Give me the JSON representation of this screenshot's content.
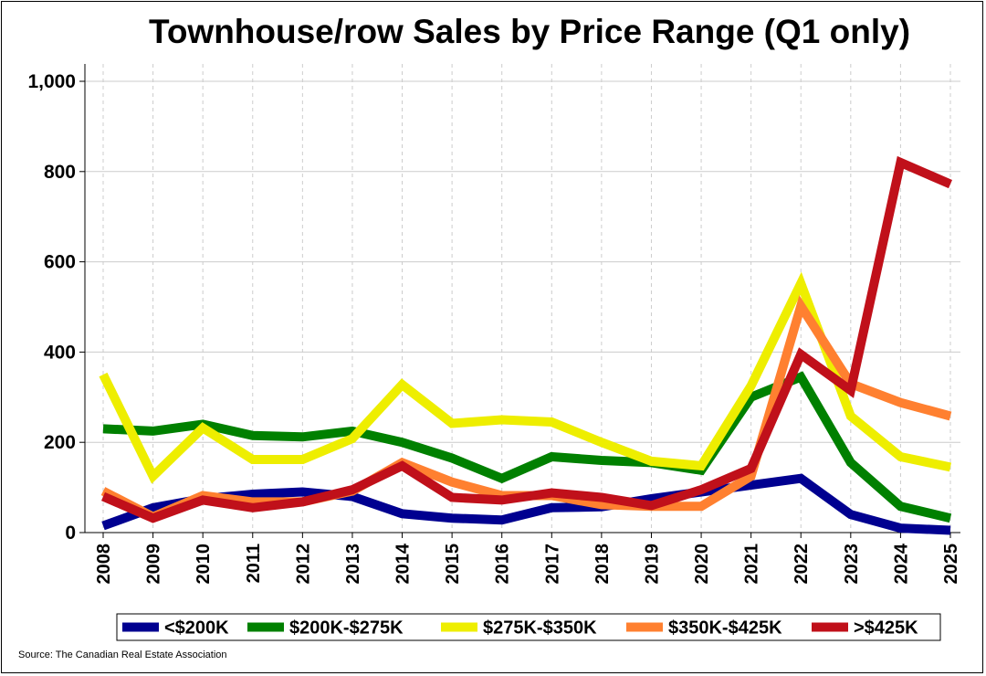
{
  "chart_data": {
    "type": "line",
    "title": "Townhouse/row Sales by Price Range (Q1 only)",
    "xlabel": "",
    "ylabel": "",
    "x": [
      "2008",
      "2009",
      "2010",
      "2011",
      "2012",
      "2013",
      "2014",
      "2015",
      "2016",
      "2017",
      "2018",
      "2019",
      "2020",
      "2021",
      "2022",
      "2023",
      "2024",
      "2025"
    ],
    "ylim": [
      0,
      1000
    ],
    "yticks": [
      0,
      200,
      400,
      600,
      800,
      1000
    ],
    "ytick_labels": [
      "0",
      "200",
      "400",
      "600",
      "800",
      "1,000"
    ],
    "grid": "on",
    "legend_position": "bottom",
    "series": [
      {
        "name": "<$200K",
        "color": "#000090",
        "values": [
          15,
          55,
          75,
          85,
          90,
          80,
          42,
          32,
          28,
          55,
          57,
          75,
          90,
          105,
          120,
          40,
          10,
          5
        ]
      },
      {
        "name": "$200K-$275K",
        "color": "#008000",
        "values": [
          230,
          225,
          240,
          215,
          212,
          225,
          200,
          165,
          120,
          168,
          160,
          155,
          138,
          300,
          345,
          155,
          58,
          32
        ]
      },
      {
        "name": "$275K-$350K",
        "color": "#EEEE00",
        "values": [
          350,
          125,
          232,
          162,
          162,
          208,
          328,
          242,
          250,
          245,
          200,
          158,
          148,
          325,
          552,
          258,
          168,
          145
        ]
      },
      {
        "name": "$350K-$425K",
        "color": "#FF8030",
        "values": [
          92,
          35,
          82,
          68,
          68,
          92,
          155,
          112,
          82,
          82,
          62,
          58,
          58,
          125,
          502,
          330,
          288,
          258
        ]
      },
      {
        "name": ">$425K",
        "color": "#C0101A",
        "values": [
          80,
          32,
          72,
          55,
          68,
          95,
          148,
          78,
          72,
          88,
          78,
          60,
          95,
          142,
          395,
          315,
          820,
          772
        ]
      }
    ]
  },
  "source": "Source: The Canadian Real Estate Association"
}
